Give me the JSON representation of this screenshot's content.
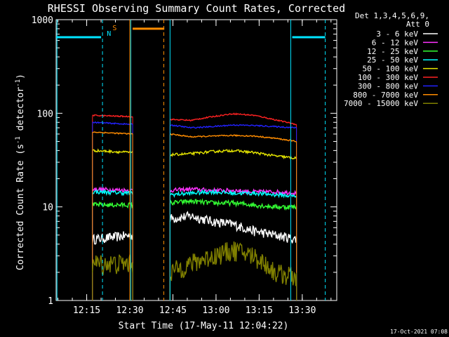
{
  "chart_data": {
    "type": "line",
    "title": "RHESSI Observing Summary Count Rates, Corrected",
    "xlabel": "Start Time (17-May-11 12:04:22)",
    "ylabel_prefix": "Corrected Count Rate (s",
    "ylabel_sup1": "-1",
    "ylabel_mid": " detector",
    "ylabel_sup2": "-1",
    "ylabel_suffix": ")",
    "y_scale": "log",
    "ylim": [
      1,
      1000
    ],
    "xlim": [
      "12:04:22",
      "13:42:00"
    ],
    "x_ticks": [
      "12:15",
      "12:30",
      "12:45",
      "13:00",
      "13:15",
      "13:30"
    ],
    "y_ticks": [
      "1",
      "10",
      "100",
      "1000"
    ],
    "detector_label_line1": "Det 1,3,4,5,6,9,",
    "detector_label_line2": "Att 0",
    "timestamp": "17-Oct-2021 07:08",
    "flags": [
      {
        "label": "N",
        "time": "12:22",
        "color": "#00e5ff"
      },
      {
        "label": "S",
        "time": "12:24",
        "color": "#ff8c00"
      }
    ],
    "night_bars": [
      {
        "start": "12:04:22",
        "end": "12:20:00",
        "level": 650,
        "color": "#00e5ff"
      },
      {
        "start": "13:26:30",
        "end": "13:38:00",
        "level": 650,
        "color": "#00e5ff"
      }
    ],
    "saa_bar": {
      "start": "12:31:00",
      "end": "12:42:00",
      "level": 800,
      "color": "#ff8c00"
    },
    "vlines": [
      {
        "time": "12:04:40",
        "color": "#00e5ff",
        "style": "solid"
      },
      {
        "time": "12:20:30",
        "color": "#00e5ff",
        "style": "dashed"
      },
      {
        "time": "12:30:20",
        "color": "#00e5ff",
        "style": "solid"
      },
      {
        "time": "12:30:00",
        "color": "#ff8c00",
        "style": "solid"
      },
      {
        "time": "12:41:50",
        "color": "#ff8c00",
        "style": "dashed"
      },
      {
        "time": "12:44:00",
        "color": "#00e5ff",
        "style": "solid"
      },
      {
        "time": "13:26:00",
        "color": "#00e5ff",
        "style": "solid"
      },
      {
        "time": "13:38:00",
        "color": "#00e5ff",
        "style": "dashed"
      }
    ],
    "segments": [
      {
        "start": "12:17:00",
        "end": "12:31:00"
      },
      {
        "start": "12:44:00",
        "end": "13:28:00"
      }
    ],
    "series": [
      {
        "name": "3 - 6 keV",
        "color": "#ffffff",
        "seg1": [
          4.5,
          5.0
        ],
        "seg2": [
          7.5,
          8.0,
          7.0,
          6.5,
          5.5,
          5.0,
          4.5
        ],
        "noise": 0.12
      },
      {
        "name": "6 - 12 keV",
        "color": "#ff33ff",
        "seg1": [
          15.5,
          15.0
        ],
        "seg2": [
          15.0,
          15.5,
          15.0,
          15.0,
          14.5,
          14.5,
          14.0
        ],
        "noise": 0.05
      },
      {
        "name": "12 - 25 keV",
        "color": "#33ff33",
        "seg1": [
          10.5,
          10.5
        ],
        "seg2": [
          11.0,
          11.5,
          11.0,
          11.0,
          10.5,
          10.0,
          10.0
        ],
        "noise": 0.06
      },
      {
        "name": "25 - 50 keV",
        "color": "#00ffff",
        "seg1": [
          14.5,
          14.0
        ],
        "seg2": [
          13.5,
          14.0,
          14.5,
          14.0,
          14.0,
          13.5,
          13.0
        ],
        "noise": 0.05
      },
      {
        "name": "50 - 100 keV",
        "color": "#e6e600",
        "seg1": [
          40,
          38
        ],
        "seg2": [
          36,
          37,
          39,
          40,
          38,
          35,
          33
        ],
        "noise": 0.03
      },
      {
        "name": "100 - 300 keV",
        "color": "#ff2222",
        "seg1": [
          95,
          92
        ],
        "seg2": [
          86,
          84,
          92,
          99,
          95,
          85,
          76
        ],
        "noise": 0.015
      },
      {
        "name": "300 - 800 keV",
        "color": "#2222ff",
        "seg1": [
          80,
          76
        ],
        "seg2": [
          75,
          70,
          72,
          75,
          74,
          72,
          70
        ],
        "noise": 0.015
      },
      {
        "name": "800 - 7000 keV",
        "color": "#ff8c00",
        "seg1": [
          63,
          60
        ],
        "seg2": [
          60,
          56,
          57,
          58,
          57,
          54,
          50
        ],
        "noise": 0.015
      },
      {
        "name": "7000 - 15000 keV",
        "color": "#808000",
        "seg1": [
          2.5,
          2.5
        ],
        "seg2": [
          2.0,
          2.5,
          3.0,
          3.5,
          3.0,
          2.0,
          1.8
        ],
        "noise": 0.25
      }
    ]
  }
}
